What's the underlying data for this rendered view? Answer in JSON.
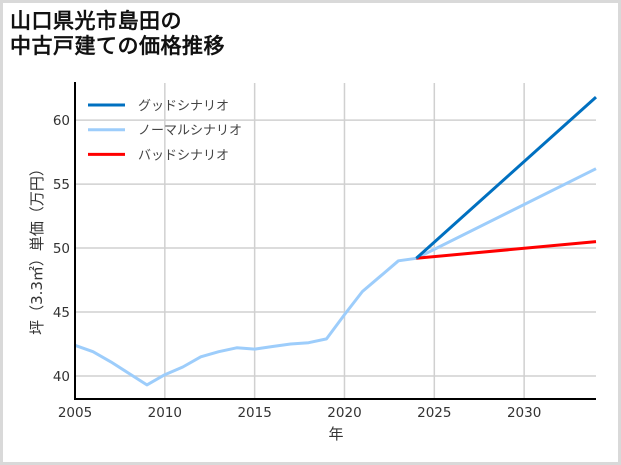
{
  "title": {
    "line1": "山口県光市島田の",
    "line2": "中古戸建ての価格推移"
  },
  "colors": {
    "good": "#0070C0",
    "normal": "#9DCDFB",
    "bad": "#FF0000",
    "grid": "#d0d0d0",
    "axis": "#000000"
  },
  "chart_data": {
    "type": "line",
    "title": "山口県光市島田の中古戸建ての価格推移",
    "xlabel": "年",
    "ylabel": "坪（3.3㎡）単価（万円）",
    "xlim": [
      2005,
      2034
    ],
    "ylim": [
      38.2,
      62.9
    ],
    "xticks": [
      2005,
      2010,
      2015,
      2020,
      2025,
      2030
    ],
    "yticks": [
      40,
      45,
      50,
      55,
      60
    ],
    "grid": true,
    "legend_position": "upper left",
    "series": [
      {
        "name": "グッドシナリオ",
        "key": "good",
        "x": [
          2024,
          2034
        ],
        "values": [
          49.2,
          61.8
        ]
      },
      {
        "name": "ノーマルシナリオ",
        "key": "normal",
        "x": [
          2005,
          2006,
          2007,
          2008,
          2009,
          2010,
          2011,
          2012,
          2013,
          2014,
          2015,
          2016,
          2017,
          2018,
          2019,
          2020,
          2021,
          2022,
          2023,
          2024,
          2034
        ],
        "values": [
          42.4,
          41.9,
          41.1,
          40.2,
          39.3,
          40.1,
          40.7,
          41.5,
          41.9,
          42.2,
          42.1,
          42.3,
          42.5,
          42.6,
          42.9,
          44.8,
          46.6,
          47.8,
          49.0,
          49.2,
          56.2
        ]
      },
      {
        "name": "バッドシナリオ",
        "key": "bad",
        "x": [
          2024,
          2034
        ],
        "values": [
          49.2,
          50.5
        ]
      }
    ]
  }
}
